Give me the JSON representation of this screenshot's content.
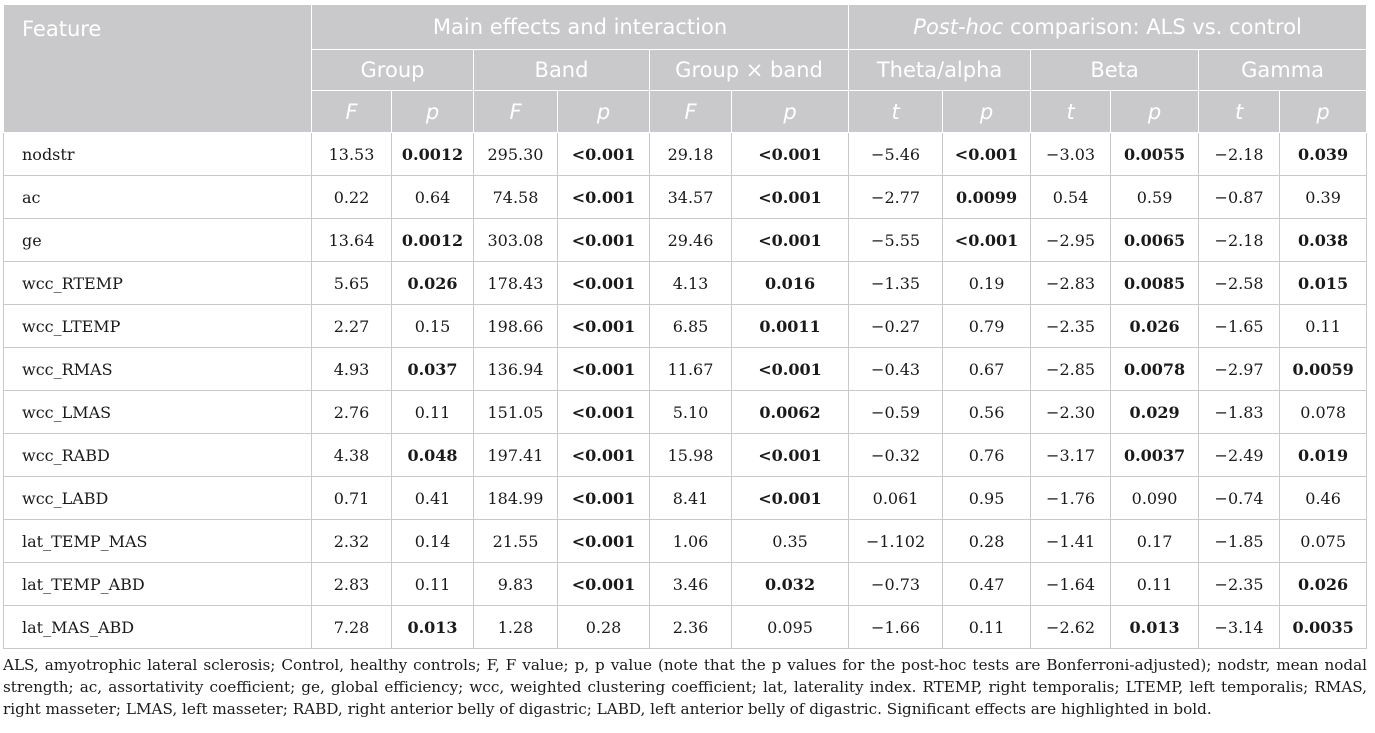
{
  "table": {
    "header": {
      "feature": "Feature",
      "main_group": "Main effects and interaction",
      "posthoc_italic": "Post-hoc",
      "posthoc_rest": " comparison: ALS vs. control",
      "subgroups": [
        "Group",
        "Band",
        "Group × band",
        "Theta/alpha",
        "Beta",
        "Gamma"
      ],
      "stats": [
        "F",
        "p",
        "F",
        "p",
        "F",
        "p",
        "t",
        "p",
        "t",
        "p",
        "t",
        "p"
      ]
    },
    "rows": [
      {
        "feature": "nodstr",
        "cells": [
          "13.53",
          "0.0012",
          "295.30",
          "<0.001",
          "29.18",
          "<0.001",
          "−5.46",
          "<0.001",
          "−3.03",
          "0.0055",
          "−2.18",
          "0.039"
        ],
        "bold": [
          1,
          3,
          5,
          7,
          9,
          11
        ]
      },
      {
        "feature": "ac",
        "cells": [
          "0.22",
          "0.64",
          "74.58",
          "<0.001",
          "34.57",
          "<0.001",
          "−2.77",
          "0.0099",
          "0.54",
          "0.59",
          "−0.87",
          "0.39"
        ],
        "bold": [
          3,
          5,
          7
        ]
      },
      {
        "feature": "ge",
        "cells": [
          "13.64",
          "0.0012",
          "303.08",
          "<0.001",
          "29.46",
          "<0.001",
          "−5.55",
          "<0.001",
          "−2.95",
          "0.0065",
          "−2.18",
          "0.038"
        ],
        "bold": [
          1,
          3,
          5,
          7,
          9,
          11
        ]
      },
      {
        "feature": "wcc_RTEMP",
        "cells": [
          "5.65",
          "0.026",
          "178.43",
          "<0.001",
          "4.13",
          "0.016",
          "−1.35",
          "0.19",
          "−2.83",
          "0.0085",
          "−2.58",
          "0.015"
        ],
        "bold": [
          1,
          3,
          5,
          9,
          11
        ]
      },
      {
        "feature": "wcc_LTEMP",
        "cells": [
          "2.27",
          "0.15",
          "198.66",
          "<0.001",
          "6.85",
          "0.0011",
          "−0.27",
          "0.79",
          "−2.35",
          "0.026",
          "−1.65",
          "0.11"
        ],
        "bold": [
          3,
          5,
          9
        ]
      },
      {
        "feature": "wcc_RMAS",
        "cells": [
          "4.93",
          "0.037",
          "136.94",
          "<0.001",
          "11.67",
          "<0.001",
          "−0.43",
          "0.67",
          "−2.85",
          "0.0078",
          "−2.97",
          "0.0059"
        ],
        "bold": [
          1,
          3,
          5,
          9,
          11
        ]
      },
      {
        "feature": "wcc_LMAS",
        "cells": [
          "2.76",
          "0.11",
          "151.05",
          "<0.001",
          "5.10",
          "0.0062",
          "−0.59",
          "0.56",
          "−2.30",
          "0.029",
          "−1.83",
          "0.078"
        ],
        "bold": [
          3,
          5,
          9
        ]
      },
      {
        "feature": "wcc_RABD",
        "cells": [
          "4.38",
          "0.048",
          "197.41",
          "<0.001",
          "15.98",
          "<0.001",
          "−0.32",
          "0.76",
          "−3.17",
          "0.0037",
          "−2.49",
          "0.019"
        ],
        "bold": [
          1,
          3,
          5,
          9,
          11
        ]
      },
      {
        "feature": "wcc_LABD",
        "cells": [
          "0.71",
          "0.41",
          "184.99",
          "<0.001",
          "8.41",
          "<0.001",
          "0.061",
          "0.95",
          "−1.76",
          "0.090",
          "−0.74",
          "0.46"
        ],
        "bold": [
          3,
          5
        ]
      },
      {
        "feature": "lat_TEMP_MAS",
        "cells": [
          "2.32",
          "0.14",
          "21.55",
          "<0.001",
          "1.06",
          "0.35",
          "−1.102",
          "0.28",
          "−1.41",
          "0.17",
          "−1.85",
          "0.075"
        ],
        "bold": [
          3
        ]
      },
      {
        "feature": "lat_TEMP_ABD",
        "cells": [
          "2.83",
          "0.11",
          "9.83",
          "<0.001",
          "3.46",
          "0.032",
          "−0.73",
          "0.47",
          "−1.64",
          "0.11",
          "−2.35",
          "0.026"
        ],
        "bold": [
          3,
          5,
          11
        ]
      },
      {
        "feature": "lat_MAS_ABD",
        "cells": [
          "7.28",
          "0.013",
          "1.28",
          "0.28",
          "2.36",
          "0.095",
          "−1.66",
          "0.11",
          "−2.62",
          "0.013",
          "−3.14",
          "0.0035"
        ],
        "bold": [
          1,
          9,
          11
        ]
      }
    ]
  },
  "footnote": "ALS, amyotrophic lateral sclerosis; Control, healthy controls; F, F value; p, p value (note that the p values for the post-hoc tests are Bonferroni-adjusted); nodstr, mean nodal strength; ac, assortativity coefficient; ge, global efficiency; wcc, weighted clustering coefficient; lat, laterality index. RTEMP, right temporalis; LTEMP, left temporalis; RMAS, right masseter; LMAS, left masseter; RABD, right anterior belly of digastric; LABD, left anterior belly of digastric. Significant effects are highlighted in bold.",
  "colors": {
    "header_bg": "#c9c9cb",
    "header_text": "#ffffff",
    "border": "#c9c9cb"
  }
}
